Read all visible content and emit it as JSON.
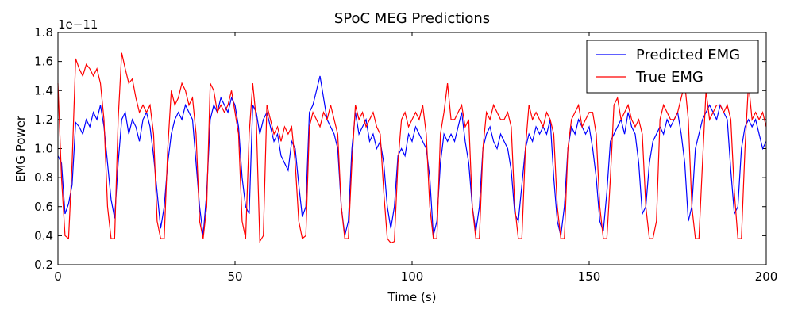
{
  "chart_data": {
    "type": "line",
    "title": "SPoC MEG Predictions",
    "x_label": "Time (s)",
    "y_label": "EMG Power",
    "y_offset_label": "1e−11",
    "xlim": [
      0,
      200
    ],
    "ylim": [
      0.2,
      1.8
    ],
    "xticks": [
      0,
      50,
      100,
      150,
      200
    ],
    "yticks": [
      0.2,
      0.4,
      0.6,
      0.8,
      {
        "value": 1.0,
        "label": "1.0"
      },
      1.2,
      1.4,
      1.6,
      1.8
    ],
    "grid": false,
    "legend_position": "upper right",
    "x": [
      0,
      1,
      2,
      3,
      4,
      5,
      6,
      7,
      8,
      9,
      10,
      11,
      12,
      13,
      14,
      15,
      16,
      17,
      18,
      19,
      20,
      21,
      22,
      23,
      24,
      25,
      26,
      27,
      28,
      29,
      30,
      31,
      32,
      33,
      34,
      35,
      36,
      37,
      38,
      39,
      40,
      41,
      42,
      43,
      44,
      45,
      46,
      47,
      48,
      49,
      50,
      51,
      52,
      53,
      54,
      55,
      56,
      57,
      58,
      59,
      60,
      61,
      62,
      63,
      64,
      65,
      66,
      67,
      68,
      69,
      70,
      71,
      72,
      73,
      74,
      75,
      76,
      77,
      78,
      79,
      80,
      81,
      82,
      83,
      84,
      85,
      86,
      87,
      88,
      89,
      90,
      91,
      92,
      93,
      94,
      95,
      96,
      97,
      98,
      99,
      100,
      101,
      102,
      103,
      104,
      105,
      106,
      107,
      108,
      109,
      110,
      111,
      112,
      113,
      114,
      115,
      116,
      117,
      118,
      119,
      120,
      121,
      122,
      123,
      124,
      125,
      126,
      127,
      128,
      129,
      130,
      131,
      132,
      133,
      134,
      135,
      136,
      137,
      138,
      139,
      140,
      141,
      142,
      143,
      144,
      145,
      146,
      147,
      148,
      149,
      150,
      151,
      152,
      153,
      154,
      155,
      156,
      157,
      158,
      159,
      160,
      161,
      162,
      163,
      164,
      165,
      166,
      167,
      168,
      169,
      170,
      171,
      172,
      173,
      174,
      175,
      176,
      177,
      178,
      179,
      180,
      181,
      182,
      183,
      184,
      185,
      186,
      187,
      188,
      189,
      190,
      191,
      192,
      193,
      194,
      195,
      196,
      197,
      198,
      199,
      200
    ],
    "series": [
      {
        "name": "Predicted EMG",
        "color": "#0000ff",
        "values": [
          0.95,
          0.9,
          0.55,
          0.62,
          0.75,
          1.18,
          1.15,
          1.1,
          1.2,
          1.15,
          1.25,
          1.2,
          1.3,
          1.15,
          0.9,
          0.65,
          0.52,
          0.9,
          1.2,
          1.25,
          1.1,
          1.2,
          1.15,
          1.05,
          1.2,
          1.25,
          1.15,
          0.95,
          0.7,
          0.45,
          0.6,
          0.9,
          1.1,
          1.2,
          1.25,
          1.2,
          1.3,
          1.25,
          1.2,
          0.9,
          0.6,
          0.4,
          0.7,
          1.2,
          1.3,
          1.25,
          1.35,
          1.3,
          1.25,
          1.35,
          1.3,
          1.15,
          0.8,
          0.6,
          0.55,
          1.3,
          1.25,
          1.1,
          1.2,
          1.25,
          1.15,
          1.05,
          1.1,
          0.95,
          0.9,
          0.85,
          1.05,
          1.0,
          0.75,
          0.53,
          0.6,
          1.25,
          1.3,
          1.4,
          1.5,
          1.35,
          1.2,
          1.15,
          1.1,
          1.0,
          0.6,
          0.4,
          0.5,
          1.0,
          1.25,
          1.1,
          1.15,
          1.2,
          1.05,
          1.1,
          1.0,
          1.05,
          0.9,
          0.6,
          0.45,
          0.6,
          0.95,
          1.0,
          0.95,
          1.1,
          1.05,
          1.15,
          1.1,
          1.05,
          1.0,
          0.8,
          0.4,
          0.5,
          0.9,
          1.1,
          1.05,
          1.1,
          1.05,
          1.15,
          1.25,
          1.05,
          0.9,
          0.6,
          0.43,
          0.6,
          1.0,
          1.1,
          1.15,
          1.05,
          1.0,
          1.1,
          1.05,
          1.0,
          0.85,
          0.55,
          0.5,
          0.75,
          1.0,
          1.1,
          1.05,
          1.15,
          1.1,
          1.15,
          1.1,
          1.2,
          0.8,
          0.5,
          0.4,
          0.6,
          1.0,
          1.15,
          1.1,
          1.2,
          1.15,
          1.1,
          1.15,
          1.0,
          0.8,
          0.5,
          0.43,
          0.7,
          1.05,
          1.1,
          1.15,
          1.2,
          1.1,
          1.25,
          1.15,
          1.1,
          0.9,
          0.55,
          0.6,
          0.9,
          1.05,
          1.1,
          1.15,
          1.1,
          1.2,
          1.15,
          1.2,
          1.25,
          1.1,
          0.9,
          0.5,
          0.6,
          1.0,
          1.1,
          1.2,
          1.25,
          1.3,
          1.25,
          1.2,
          1.3,
          1.25,
          1.2,
          0.85,
          0.55,
          0.6,
          1.0,
          1.15,
          1.2,
          1.15,
          1.2,
          1.1,
          1.0,
          1.05
        ]
      },
      {
        "name": "True EMG",
        "color": "#ff0000",
        "values": [
          1.45,
          0.8,
          0.4,
          0.38,
          0.9,
          1.62,
          1.55,
          1.5,
          1.58,
          1.55,
          1.5,
          1.55,
          1.45,
          1.2,
          0.6,
          0.38,
          0.38,
          1.2,
          1.66,
          1.55,
          1.45,
          1.48,
          1.35,
          1.25,
          1.3,
          1.25,
          1.3,
          1.1,
          0.5,
          0.38,
          0.38,
          1.0,
          1.4,
          1.3,
          1.35,
          1.45,
          1.4,
          1.3,
          1.35,
          1.1,
          0.5,
          0.38,
          0.6,
          1.45,
          1.4,
          1.25,
          1.3,
          1.25,
          1.3,
          1.4,
          1.25,
          1.1,
          0.5,
          0.38,
          1.1,
          1.45,
          1.2,
          0.36,
          0.4,
          1.3,
          1.2,
          1.1,
          1.15,
          1.05,
          1.15,
          1.1,
          1.15,
          0.9,
          0.5,
          0.38,
          0.4,
          1.15,
          1.25,
          1.2,
          1.15,
          1.25,
          1.2,
          1.3,
          1.2,
          1.1,
          0.6,
          0.38,
          0.38,
          0.9,
          1.3,
          1.2,
          1.25,
          1.15,
          1.2,
          1.25,
          1.15,
          1.1,
          0.7,
          0.38,
          0.35,
          0.36,
          0.9,
          1.2,
          1.25,
          1.15,
          1.2,
          1.25,
          1.2,
          1.3,
          1.1,
          0.6,
          0.38,
          0.38,
          1.1,
          1.25,
          1.45,
          1.2,
          1.2,
          1.25,
          1.3,
          1.15,
          1.2,
          0.6,
          0.38,
          0.38,
          1.0,
          1.25,
          1.2,
          1.3,
          1.25,
          1.2,
          1.2,
          1.25,
          1.15,
          0.6,
          0.38,
          0.38,
          1.0,
          1.3,
          1.2,
          1.25,
          1.2,
          1.15,
          1.25,
          1.2,
          1.1,
          0.6,
          0.38,
          0.38,
          1.0,
          1.2,
          1.25,
          1.3,
          1.15,
          1.2,
          1.25,
          1.25,
          1.1,
          0.6,
          0.38,
          0.38,
          0.8,
          1.3,
          1.35,
          1.2,
          1.25,
          1.3,
          1.2,
          1.15,
          1.2,
          1.1,
          0.6,
          0.38,
          0.38,
          0.5,
          1.2,
          1.3,
          1.25,
          1.2,
          1.2,
          1.25,
          1.35,
          1.45,
          1.2,
          0.6,
          0.38,
          0.38,
          0.9,
          1.4,
          1.2,
          1.25,
          1.3,
          1.3,
          1.25,
          1.3,
          1.2,
          0.7,
          0.38,
          0.38,
          1.0,
          1.45,
          1.2,
          1.25,
          1.2,
          1.25,
          1.15
        ]
      }
    ]
  }
}
